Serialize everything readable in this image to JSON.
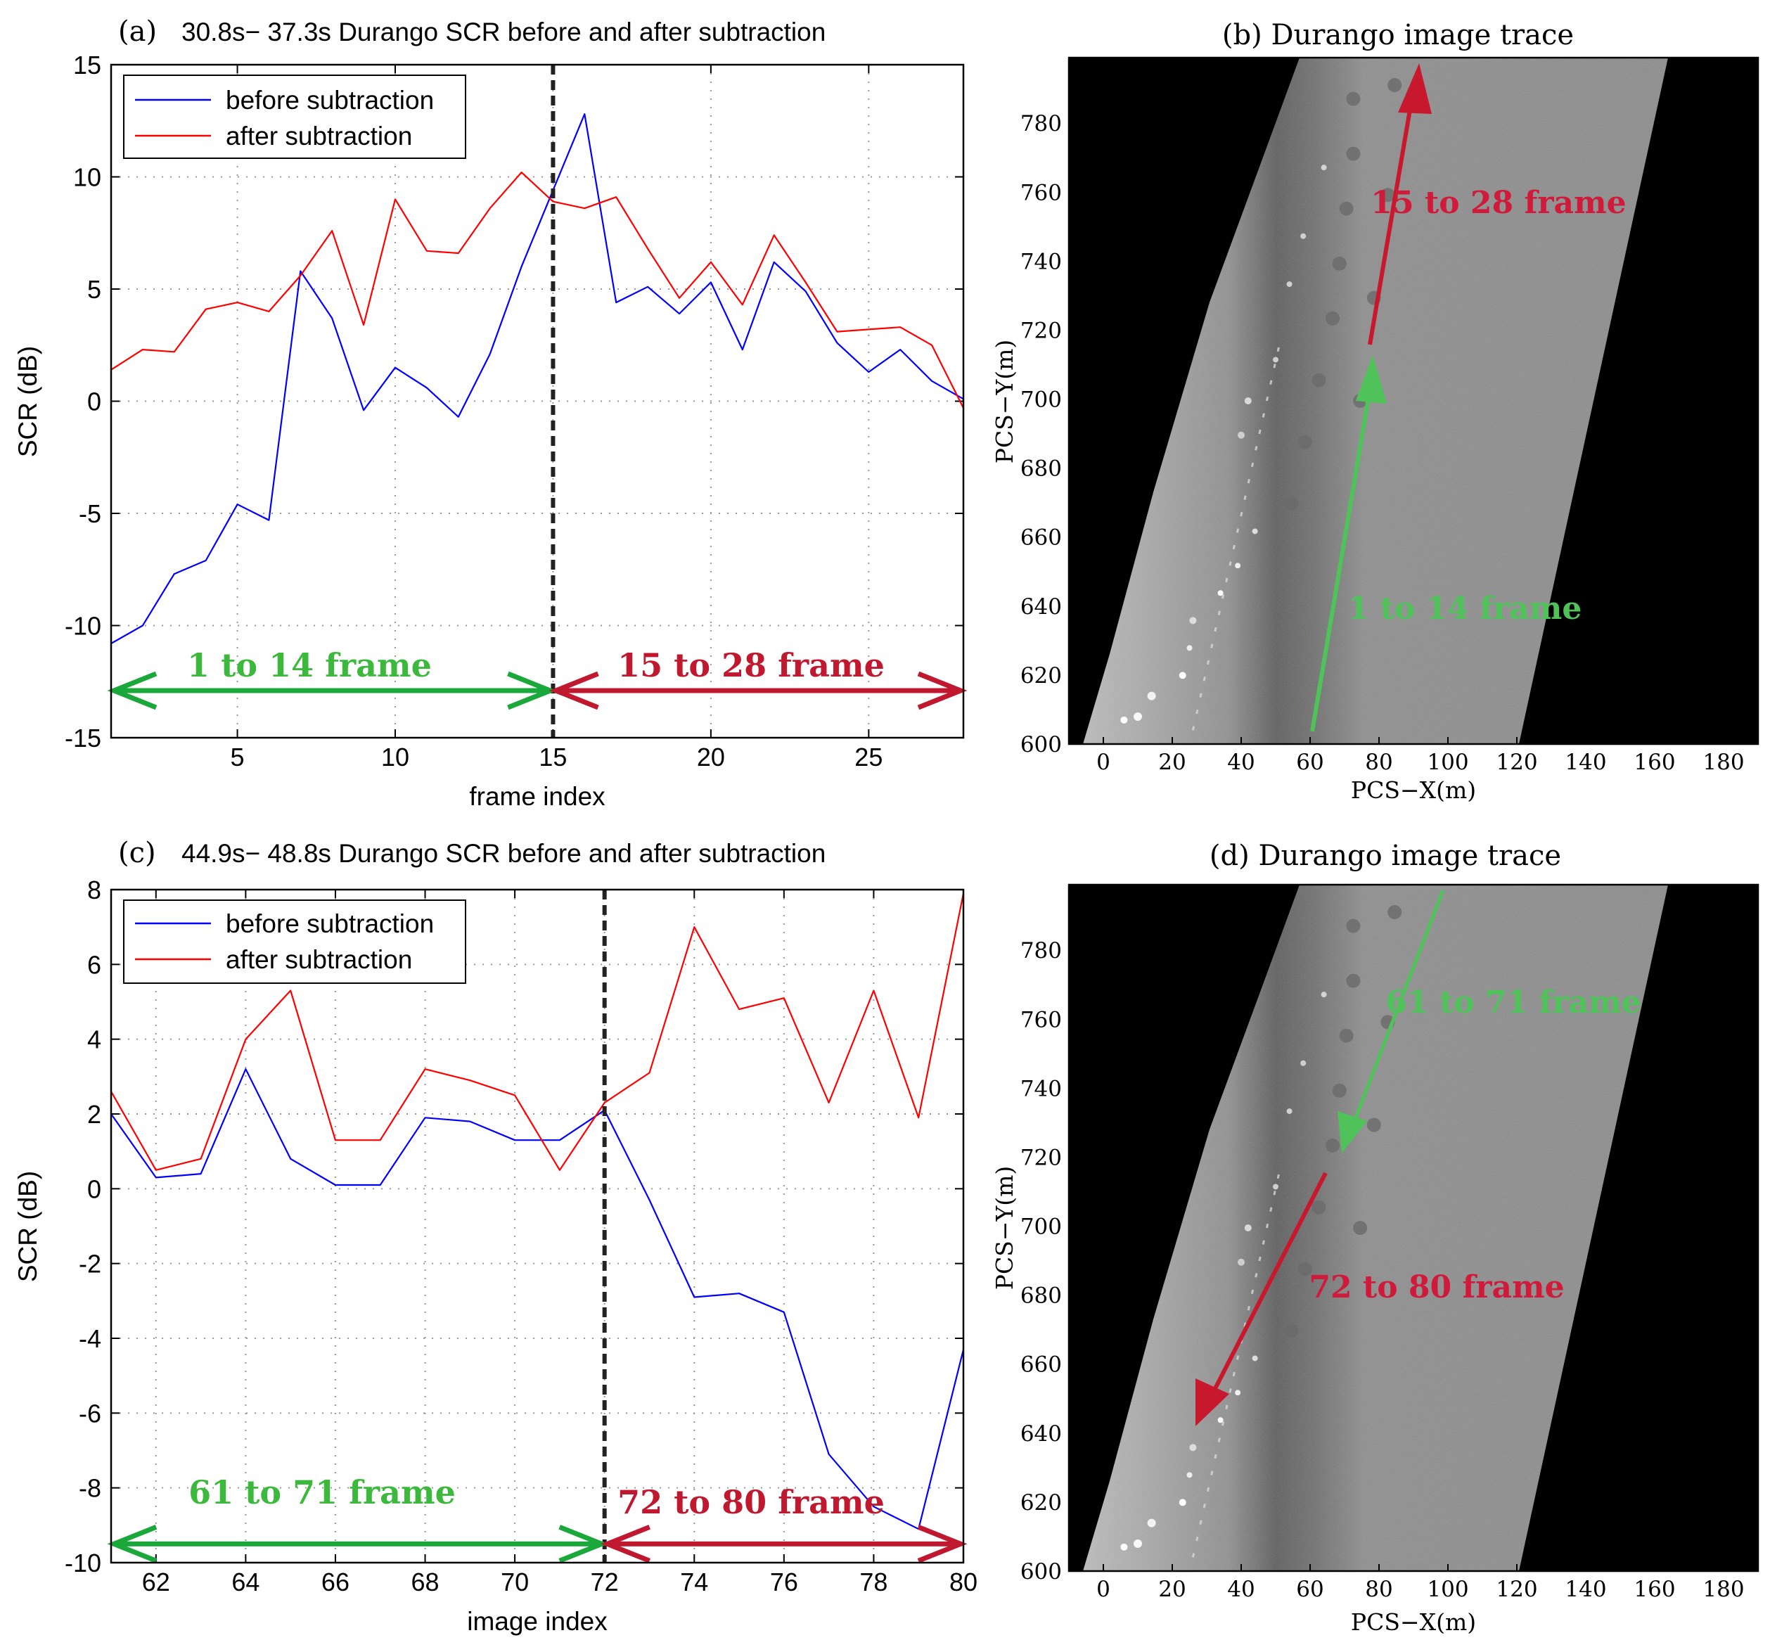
{
  "colors": {
    "before": "#0000ff",
    "after": "#ff0000",
    "green_arrow": "#1aa83a",
    "red_arrow": "#c0182e",
    "label_green": "#3cb83c",
    "label_red": "#d01a3a",
    "grid": "#999999"
  },
  "chart_data": [
    {
      "panel": "(a)",
      "type": "line",
      "title": "30.8s− 37.3s Durango SCR before and after subtraction",
      "xlabel": "frame index",
      "ylabel": "SCR (dB)",
      "xlim": [
        1,
        28
      ],
      "ylim": [
        -15,
        15
      ],
      "xticks": [
        5,
        10,
        15,
        20,
        25
      ],
      "yticks": [
        -15,
        -10,
        -5,
        0,
        5,
        10,
        15
      ],
      "grid": true,
      "legend_position": "top-left",
      "x": [
        1,
        2,
        3,
        4,
        5,
        6,
        7,
        8,
        9,
        10,
        11,
        12,
        13,
        14,
        15,
        16,
        17,
        18,
        19,
        20,
        21,
        22,
        23,
        24,
        25,
        26,
        27,
        28
      ],
      "series": [
        {
          "name": "before subtraction",
          "color": "#0000ff",
          "values": [
            -10.8,
            -10.0,
            -7.7,
            -7.1,
            -4.6,
            -5.3,
            5.8,
            3.7,
            -0.4,
            1.5,
            0.6,
            -0.7,
            2.1,
            6.0,
            9.4,
            12.8,
            4.4,
            5.1,
            3.9,
            5.3,
            2.3,
            6.2,
            4.9,
            2.6,
            1.3,
            2.3,
            0.9,
            0.1
          ]
        },
        {
          "name": "after subtraction",
          "color": "#ff0000",
          "values": [
            1.4,
            2.3,
            2.2,
            4.1,
            4.4,
            4.0,
            5.6,
            7.6,
            3.4,
            9.0,
            6.7,
            6.6,
            8.6,
            10.2,
            8.9,
            8.6,
            9.1,
            6.8,
            4.6,
            6.2,
            4.3,
            7.4,
            5.3,
            3.1,
            3.2,
            3.3,
            2.5,
            -0.3
          ]
        }
      ],
      "divider_x": 15,
      "annotations": [
        {
          "text": "1 to 14 frame",
          "from": 1,
          "to": 15,
          "y": -12.9,
          "color": "green"
        },
        {
          "text": "15 to 28 frame",
          "from": 15,
          "to": 28,
          "y": -12.9,
          "color": "red"
        }
      ]
    },
    {
      "panel": "(c)",
      "type": "line",
      "title": "44.9s− 48.8s Durango SCR before and after subtraction",
      "xlabel": "image index",
      "ylabel": "SCR (dB)",
      "xlim": [
        61,
        80
      ],
      "ylim": [
        -10,
        8
      ],
      "xticks": [
        62,
        64,
        66,
        68,
        70,
        72,
        74,
        76,
        78,
        80
      ],
      "yticks": [
        -10,
        -8,
        -6,
        -4,
        -2,
        0,
        2,
        4,
        6,
        8
      ],
      "grid": true,
      "legend_position": "top-left",
      "x": [
        61,
        62,
        63,
        64,
        65,
        66,
        67,
        68,
        69,
        70,
        71,
        72,
        73,
        74,
        75,
        76,
        77,
        78,
        79,
        80
      ],
      "series": [
        {
          "name": "before subtraction",
          "color": "#0000ff",
          "values": [
            2.0,
            0.3,
            0.4,
            3.2,
            0.8,
            0.1,
            0.1,
            1.9,
            1.8,
            1.3,
            1.3,
            2.1,
            -0.3,
            -2.9,
            -2.8,
            -3.3,
            -7.1,
            -8.5,
            -9.1,
            -4.3
          ]
        },
        {
          "name": "after subtraction",
          "color": "#ff0000",
          "values": [
            2.6,
            0.5,
            0.8,
            4.0,
            5.3,
            1.3,
            1.3,
            3.2,
            2.9,
            2.5,
            0.5,
            2.3,
            3.1,
            7.0,
            4.8,
            5.1,
            2.3,
            5.3,
            1.9,
            7.9
          ]
        }
      ],
      "divider_x": 72,
      "annotations": [
        {
          "text": "61 to 71 frame",
          "from": 61,
          "to": 72,
          "y": -9.5,
          "color": "green"
        },
        {
          "text": "72 to 80 frame",
          "from": 72,
          "to": 80,
          "y": -9.5,
          "color": "red"
        }
      ]
    }
  ],
  "images": [
    {
      "panel": "(b)",
      "title": "Durango image trace",
      "xlabel": "PCS−X(m)",
      "ylabel": "PCS−Y(m)",
      "xticks": [
        0,
        20,
        40,
        60,
        80,
        100,
        120,
        140,
        160,
        180
      ],
      "yticks": [
        600,
        620,
        640,
        660,
        680,
        700,
        720,
        740,
        760,
        780
      ],
      "label_green": "1 to 14 frame",
      "label_red": "15 to 28 frame"
    },
    {
      "panel": "(d)",
      "title": "Durango image trace",
      "xlabel": "PCS−X(m)",
      "ylabel": "PCS−Y(m)",
      "xticks": [
        0,
        20,
        40,
        60,
        80,
        100,
        120,
        140,
        160,
        180
      ],
      "yticks": [
        600,
        620,
        640,
        660,
        680,
        700,
        720,
        740,
        760,
        780
      ],
      "label_green": "61 to 71 frame",
      "label_red": "72 to 80 frame"
    }
  ]
}
